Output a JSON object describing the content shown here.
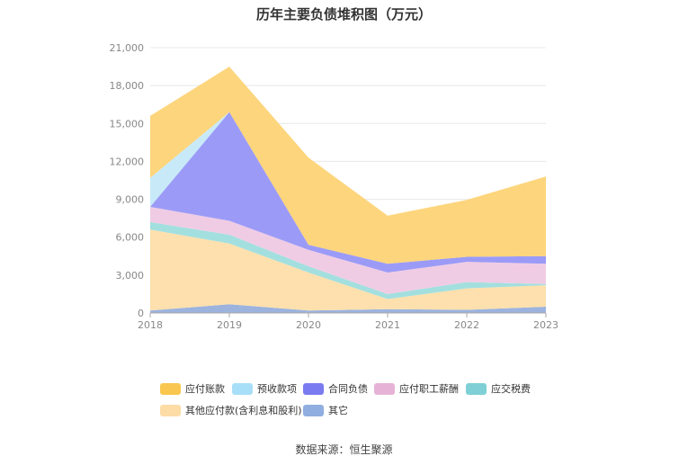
{
  "title": "历年主要负债堆积图（万元）",
  "source": "数据来源：恒生聚源",
  "chart_data": {
    "type": "area",
    "stacked": true,
    "x": [
      "2018",
      "2019",
      "2020",
      "2021",
      "2022",
      "2023"
    ],
    "ylim": [
      0,
      21000
    ],
    "yticks": [
      "0",
      "3,000",
      "6,000",
      "9,000",
      "12,000",
      "15,000",
      "18,000",
      "21,000"
    ],
    "grid": true,
    "legend_position": "bottom",
    "series": [
      {
        "name": "其它",
        "color": "#9cb3de",
        "values": [
          200,
          700,
          200,
          300,
          250,
          500
        ]
      },
      {
        "name": "其他应付款(含利息和股利)",
        "color": "#fde0ad",
        "values": [
          6400,
          4800,
          3000,
          800,
          1700,
          1700
        ]
      },
      {
        "name": "应交税费",
        "color": "#a4dfdf",
        "values": [
          600,
          700,
          500,
          400,
          500,
          100
        ]
      },
      {
        "name": "应付职工薪酬",
        "color": "#f0cce4",
        "values": [
          1200,
          1100,
          1300,
          1700,
          1600,
          1600
        ]
      },
      {
        "name": "合同负债",
        "color": "#9b9bf7",
        "values": [
          0,
          8600,
          400,
          700,
          400,
          600
        ]
      },
      {
        "name": "预收款项",
        "color": "#c8eaf8",
        "values": [
          2300,
          0,
          0,
          0,
          0,
          0
        ]
      },
      {
        "name": "应付账款",
        "color": "#fdd57c",
        "values": [
          4900,
          3600,
          6900,
          3800,
          4500,
          6300
        ]
      }
    ]
  },
  "legend": [
    {
      "label": "应付账款",
      "color": "#f9c74f"
    },
    {
      "label": "预收款项",
      "color": "#a8dff8"
    },
    {
      "label": "合同负债",
      "color": "#7b7bf0"
    },
    {
      "label": "应付职工薪酬",
      "color": "#e6b3d6"
    },
    {
      "label": "应交税费",
      "color": "#7fd0d6"
    },
    {
      "label": "其他应付款(含利息和股利)",
      "color": "#fddca6"
    },
    {
      "label": "其它",
      "color": "#90aee0"
    }
  ]
}
